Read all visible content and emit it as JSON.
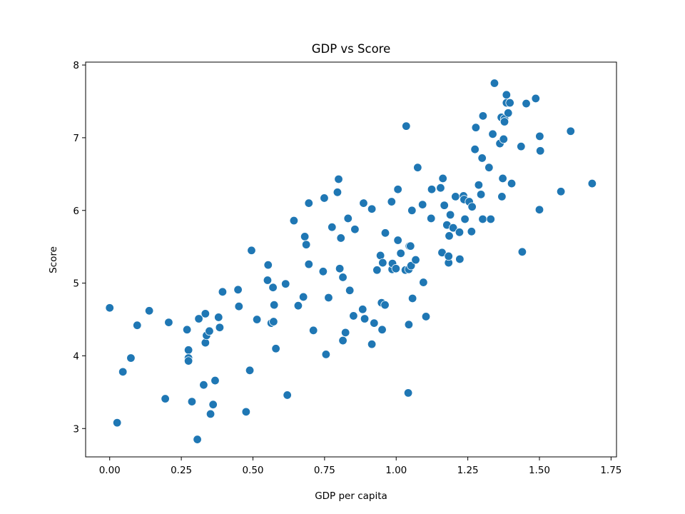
{
  "chart_data": {
    "type": "scatter",
    "title": "GDP vs Score",
    "xlabel": "GDP per capita",
    "ylabel": "Score",
    "xlim": [
      -0.084,
      1.769
    ],
    "ylim": [
      2.61,
      8.04
    ],
    "xticks": [
      0.0,
      0.25,
      0.5,
      0.75,
      1.0,
      1.25,
      1.5,
      1.75
    ],
    "xtick_labels": [
      "0.00",
      "0.25",
      "0.50",
      "0.75",
      "1.00",
      "1.25",
      "1.50",
      "1.75"
    ],
    "yticks": [
      3,
      4,
      5,
      6,
      7,
      8
    ],
    "ytick_labels": [
      "3",
      "4",
      "5",
      "6",
      "7",
      "8"
    ],
    "grid": false,
    "series": [
      {
        "color": "#1f77b4",
        "points": [
          [
            0.0,
            4.66
          ],
          [
            0.026,
            3.08
          ],
          [
            0.046,
            3.78
          ],
          [
            0.074,
            3.97
          ],
          [
            0.096,
            4.42
          ],
          [
            0.138,
            4.62
          ],
          [
            0.194,
            3.41
          ],
          [
            0.206,
            4.46
          ],
          [
            0.27,
            4.36
          ],
          [
            0.275,
            4.08
          ],
          [
            0.275,
            3.97
          ],
          [
            0.275,
            3.93
          ],
          [
            0.287,
            3.37
          ],
          [
            0.306,
            2.85
          ],
          [
            0.311,
            4.51
          ],
          [
            0.328,
            3.6
          ],
          [
            0.334,
            4.58
          ],
          [
            0.334,
            4.18
          ],
          [
            0.338,
            4.28
          ],
          [
            0.348,
            4.34
          ],
          [
            0.352,
            3.2
          ],
          [
            0.361,
            3.33
          ],
          [
            0.368,
            3.66
          ],
          [
            0.38,
            4.53
          ],
          [
            0.384,
            4.39
          ],
          [
            0.394,
            4.88
          ],
          [
            0.448,
            4.91
          ],
          [
            0.451,
            4.68
          ],
          [
            0.476,
            3.23
          ],
          [
            0.489,
            3.8
          ],
          [
            0.495,
            5.45
          ],
          [
            0.514,
            4.5
          ],
          [
            0.551,
            5.04
          ],
          [
            0.553,
            5.25
          ],
          [
            0.564,
            4.45
          ],
          [
            0.57,
            4.94
          ],
          [
            0.572,
            4.47
          ],
          [
            0.574,
            4.7
          ],
          [
            0.58,
            4.1
          ],
          [
            0.614,
            4.99
          ],
          [
            0.62,
            3.46
          ],
          [
            0.643,
            5.86
          ],
          [
            0.658,
            4.69
          ],
          [
            0.676,
            4.81
          ],
          [
            0.681,
            5.64
          ],
          [
            0.686,
            5.53
          ],
          [
            0.695,
            6.1
          ],
          [
            0.695,
            5.26
          ],
          [
            0.711,
            4.35
          ],
          [
            0.745,
            5.16
          ],
          [
            0.749,
            6.17
          ],
          [
            0.755,
            4.02
          ],
          [
            0.764,
            4.8
          ],
          [
            0.776,
            5.77
          ],
          [
            0.795,
            6.25
          ],
          [
            0.799,
            6.43
          ],
          [
            0.803,
            5.2
          ],
          [
            0.807,
            5.62
          ],
          [
            0.814,
            4.21
          ],
          [
            0.814,
            5.08
          ],
          [
            0.823,
            4.32
          ],
          [
            0.832,
            5.89
          ],
          [
            0.838,
            4.9
          ],
          [
            0.851,
            4.55
          ],
          [
            0.856,
            5.74
          ],
          [
            0.883,
            4.64
          ],
          [
            0.886,
            6.1
          ],
          [
            0.89,
            4.51
          ],
          [
            0.915,
            6.02
          ],
          [
            0.915,
            4.16
          ],
          [
            0.923,
            4.45
          ],
          [
            0.933,
            5.18
          ],
          [
            0.945,
            5.38
          ],
          [
            0.949,
            4.73
          ],
          [
            0.951,
            4.36
          ],
          [
            0.953,
            5.28
          ],
          [
            0.961,
            4.7
          ],
          [
            0.962,
            5.69
          ],
          [
            0.984,
            6.12
          ],
          [
            0.986,
            5.19
          ],
          [
            0.987,
            5.27
          ],
          [
            0.999,
            5.2
          ],
          [
            1.006,
            5.59
          ],
          [
            1.006,
            6.29
          ],
          [
            1.016,
            5.41
          ],
          [
            1.032,
            5.18
          ],
          [
            1.035,
            7.16
          ],
          [
            1.042,
            3.49
          ],
          [
            1.044,
            4.43
          ],
          [
            1.044,
            5.19
          ],
          [
            1.046,
            5.51
          ],
          [
            1.05,
            5.51
          ],
          [
            1.052,
            5.24
          ],
          [
            1.055,
            6.0
          ],
          [
            1.057,
            4.79
          ],
          [
            1.068,
            5.32
          ],
          [
            1.075,
            6.59
          ],
          [
            1.092,
            6.08
          ],
          [
            1.095,
            5.01
          ],
          [
            1.104,
            4.54
          ],
          [
            1.122,
            5.89
          ],
          [
            1.124,
            6.29
          ],
          [
            1.155,
            6.31
          ],
          [
            1.16,
            5.42
          ],
          [
            1.163,
            6.44
          ],
          [
            1.168,
            6.07
          ],
          [
            1.177,
            5.8
          ],
          [
            1.183,
            5.28
          ],
          [
            1.183,
            5.37
          ],
          [
            1.185,
            5.65
          ],
          [
            1.189,
            5.94
          ],
          [
            1.199,
            5.76
          ],
          [
            1.207,
            6.19
          ],
          [
            1.221,
            5.7
          ],
          [
            1.222,
            5.33
          ],
          [
            1.235,
            6.2
          ],
          [
            1.237,
            6.15
          ],
          [
            1.24,
            5.88
          ],
          [
            1.255,
            6.12
          ],
          [
            1.263,
            5.71
          ],
          [
            1.265,
            6.05
          ],
          [
            1.275,
            6.84
          ],
          [
            1.278,
            7.14
          ],
          [
            1.288,
            6.35
          ],
          [
            1.296,
            6.22
          ],
          [
            1.3,
            6.72
          ],
          [
            1.302,
            5.88
          ],
          [
            1.303,
            7.3
          ],
          [
            1.324,
            6.59
          ],
          [
            1.33,
            5.88
          ],
          [
            1.337,
            7.05
          ],
          [
            1.343,
            7.75
          ],
          [
            1.362,
            6.92
          ],
          [
            1.367,
            7.28
          ],
          [
            1.369,
            6.19
          ],
          [
            1.372,
            6.44
          ],
          [
            1.375,
            6.98
          ],
          [
            1.378,
            7.26
          ],
          [
            1.378,
            7.22
          ],
          [
            1.385,
            7.59
          ],
          [
            1.385,
            7.48
          ],
          [
            1.391,
            7.34
          ],
          [
            1.397,
            7.48
          ],
          [
            1.403,
            6.37
          ],
          [
            1.436,
            6.88
          ],
          [
            1.44,
            5.43
          ],
          [
            1.454,
            7.47
          ],
          [
            1.487,
            7.54
          ],
          [
            1.5,
            6.01
          ],
          [
            1.501,
            7.02
          ],
          [
            1.503,
            6.82
          ],
          [
            1.575,
            6.26
          ],
          [
            1.609,
            7.09
          ],
          [
            1.684,
            6.37
          ]
        ]
      }
    ]
  }
}
